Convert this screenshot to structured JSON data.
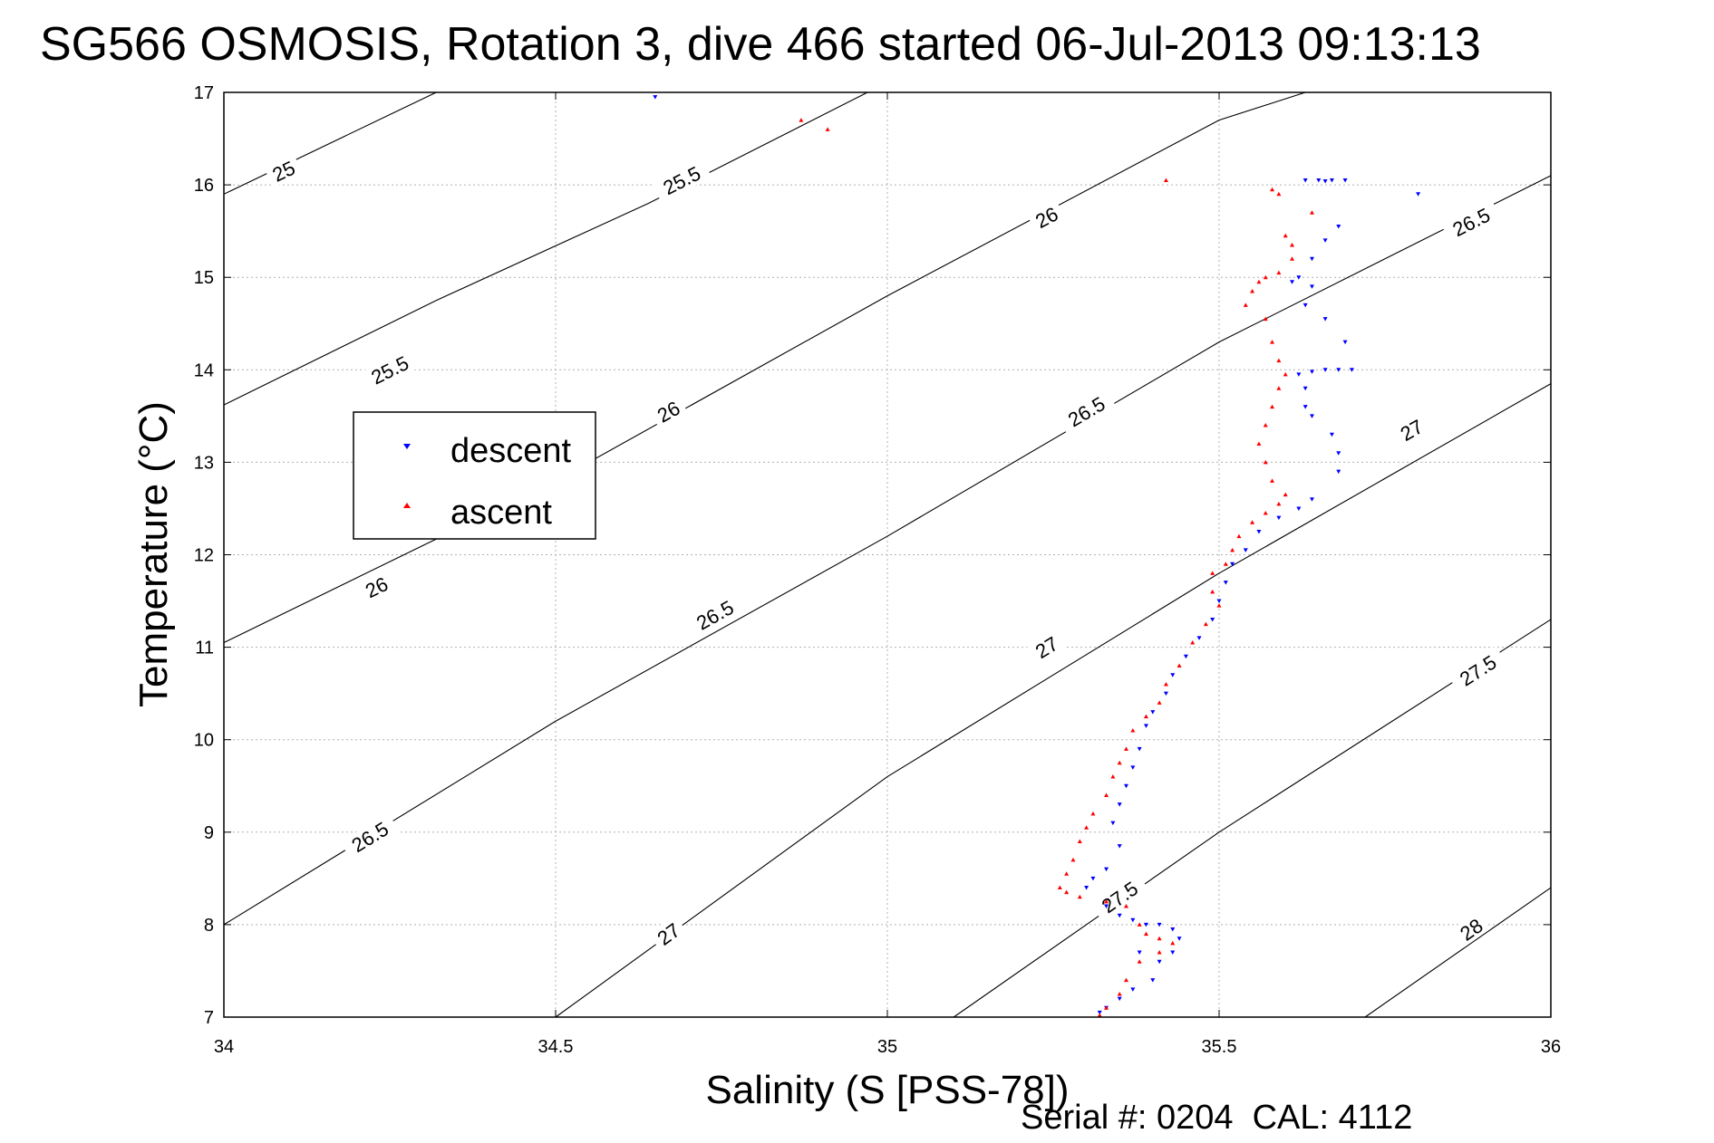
{
  "chart_data": {
    "type": "scatter",
    "title": "SG566 OSMOSIS, Rotation 3, dive 466 started 06-Jul-2013 09:13:13",
    "xlabel": "Salinity (S [PSS-78])",
    "ylabel": "Temperature (°C)",
    "footer": "Serial #: 0204  CAL: 4112",
    "xlim": [
      34,
      36
    ],
    "ylim": [
      7,
      17
    ],
    "xticks": [
      "34",
      "34.5",
      "35",
      "35.5",
      "36"
    ],
    "yticks": [
      "7",
      "8",
      "9",
      "10",
      "11",
      "12",
      "13",
      "14",
      "15",
      "16",
      "17"
    ],
    "grid": true,
    "legend": "left-middle",
    "colors": {
      "descent": "#0000ff",
      "ascent": "#ff0000",
      "contour": "#000000",
      "grid": "#b0b0b0"
    },
    "series": [
      {
        "name": "descent",
        "marker": "triangle-down",
        "points": [
          [
            34.65,
            16.95
          ],
          [
            35.63,
            16.05
          ],
          [
            35.65,
            16.05
          ],
          [
            35.66,
            16.04
          ],
          [
            35.67,
            16.05
          ],
          [
            35.69,
            16.05
          ],
          [
            35.8,
            15.9
          ],
          [
            35.68,
            15.55
          ],
          [
            35.66,
            15.4
          ],
          [
            35.64,
            15.2
          ],
          [
            35.62,
            15.0
          ],
          [
            35.61,
            14.95
          ],
          [
            35.64,
            14.9
          ],
          [
            35.63,
            14.7
          ],
          [
            35.66,
            14.55
          ],
          [
            35.69,
            14.3
          ],
          [
            35.62,
            13.95
          ],
          [
            35.64,
            13.98
          ],
          [
            35.66,
            14.0
          ],
          [
            35.68,
            14.0
          ],
          [
            35.7,
            14.0
          ],
          [
            35.63,
            13.8
          ],
          [
            35.63,
            13.6
          ],
          [
            35.64,
            13.5
          ],
          [
            35.67,
            13.3
          ],
          [
            35.68,
            13.1
          ],
          [
            35.68,
            12.9
          ],
          [
            35.64,
            12.6
          ],
          [
            35.62,
            12.5
          ],
          [
            35.59,
            12.4
          ],
          [
            35.56,
            12.25
          ],
          [
            35.54,
            12.05
          ],
          [
            35.52,
            11.9
          ],
          [
            35.51,
            11.7
          ],
          [
            35.5,
            11.5
          ],
          [
            35.49,
            11.3
          ],
          [
            35.47,
            11.1
          ],
          [
            35.45,
            10.9
          ],
          [
            35.43,
            10.7
          ],
          [
            35.42,
            10.5
          ],
          [
            35.4,
            10.3
          ],
          [
            35.39,
            10.15
          ],
          [
            35.38,
            9.9
          ],
          [
            35.37,
            9.7
          ],
          [
            35.36,
            9.5
          ],
          [
            35.35,
            9.3
          ],
          [
            35.34,
            9.1
          ],
          [
            35.35,
            8.85
          ],
          [
            35.33,
            8.6
          ],
          [
            35.31,
            8.5
          ],
          [
            35.3,
            8.4
          ],
          [
            35.33,
            8.2
          ],
          [
            35.35,
            8.1
          ],
          [
            35.37,
            8.05
          ],
          [
            35.39,
            8.0
          ],
          [
            35.41,
            8.0
          ],
          [
            35.43,
            7.95
          ],
          [
            35.44,
            7.85
          ],
          [
            35.43,
            7.7
          ],
          [
            35.41,
            7.6
          ],
          [
            35.38,
            7.7
          ],
          [
            35.4,
            7.4
          ],
          [
            35.37,
            7.3
          ],
          [
            35.35,
            7.2
          ],
          [
            35.33,
            7.1
          ],
          [
            35.32,
            7.05
          ]
        ]
      },
      {
        "name": "ascent",
        "marker": "triangle-up",
        "points": [
          [
            34.87,
            16.7
          ],
          [
            34.91,
            16.6
          ],
          [
            35.42,
            16.05
          ],
          [
            35.58,
            15.95
          ],
          [
            35.59,
            15.9
          ],
          [
            35.64,
            15.7
          ],
          [
            35.6,
            15.45
          ],
          [
            35.61,
            15.35
          ],
          [
            35.61,
            15.2
          ],
          [
            35.59,
            15.05
          ],
          [
            35.57,
            15.0
          ],
          [
            35.56,
            14.95
          ],
          [
            35.55,
            14.85
          ],
          [
            35.54,
            14.7
          ],
          [
            35.57,
            14.55
          ],
          [
            35.58,
            14.3
          ],
          [
            35.59,
            14.1
          ],
          [
            35.6,
            13.95
          ],
          [
            35.59,
            13.8
          ],
          [
            35.58,
            13.6
          ],
          [
            35.57,
            13.4
          ],
          [
            35.56,
            13.2
          ],
          [
            35.57,
            13.0
          ],
          [
            35.58,
            12.8
          ],
          [
            35.6,
            12.65
          ],
          [
            35.59,
            12.55
          ],
          [
            35.57,
            12.45
          ],
          [
            35.55,
            12.35
          ],
          [
            35.53,
            12.2
          ],
          [
            35.52,
            12.05
          ],
          [
            35.51,
            11.9
          ],
          [
            35.49,
            11.8
          ],
          [
            35.49,
            11.6
          ],
          [
            35.5,
            11.45
          ],
          [
            35.48,
            11.25
          ],
          [
            35.46,
            11.05
          ],
          [
            35.44,
            10.8
          ],
          [
            35.42,
            10.6
          ],
          [
            35.41,
            10.4
          ],
          [
            35.39,
            10.25
          ],
          [
            35.37,
            10.1
          ],
          [
            35.36,
            9.9
          ],
          [
            35.35,
            9.75
          ],
          [
            35.34,
            9.6
          ],
          [
            35.33,
            9.4
          ],
          [
            35.31,
            9.2
          ],
          [
            35.3,
            9.05
          ],
          [
            35.29,
            8.9
          ],
          [
            35.28,
            8.7
          ],
          [
            35.27,
            8.55
          ],
          [
            35.26,
            8.4
          ],
          [
            35.27,
            8.35
          ],
          [
            35.29,
            8.3
          ],
          [
            35.33,
            8.25
          ],
          [
            35.36,
            8.2
          ],
          [
            35.38,
            8.0
          ],
          [
            35.39,
            7.9
          ],
          [
            35.41,
            7.85
          ],
          [
            35.43,
            7.8
          ],
          [
            35.41,
            7.7
          ],
          [
            35.38,
            7.6
          ],
          [
            35.36,
            7.4
          ],
          [
            35.35,
            7.25
          ],
          [
            35.33,
            7.1
          ],
          [
            35.32,
            7.02
          ]
        ]
      }
    ],
    "density_contours": [
      {
        "label": "25",
        "points": [
          [
            34.0,
            15.9
          ],
          [
            34.32,
            17.0
          ]
        ],
        "labels_at": [
          [
            34.09,
            16.15
          ]
        ]
      },
      {
        "label": "25.5",
        "points": [
          [
            34.0,
            13.62
          ],
          [
            34.32,
            14.75
          ],
          [
            34.64,
            15.8
          ],
          [
            34.97,
            17.0
          ]
        ],
        "labels_at": [
          [
            34.25,
            14.0
          ],
          [
            34.69,
            16.05
          ]
        ]
      },
      {
        "label": "26",
        "points": [
          [
            34.0,
            11.05
          ],
          [
            34.5,
            12.8
          ],
          [
            35.0,
            14.8
          ],
          [
            35.5,
            16.7
          ],
          [
            35.63,
            17.0
          ]
        ],
        "labels_at": [
          [
            34.23,
            11.65
          ],
          [
            34.67,
            13.55
          ],
          [
            35.24,
            15.65
          ]
        ]
      },
      {
        "label": "26.5",
        "points": [
          [
            34.0,
            8.0
          ],
          [
            34.5,
            10.2
          ],
          [
            35.0,
            12.2
          ],
          [
            35.5,
            14.3
          ],
          [
            36.0,
            16.1
          ]
        ],
        "labels_at": [
          [
            34.22,
            8.95
          ],
          [
            34.74,
            11.35
          ],
          [
            35.3,
            13.55
          ],
          [
            35.88,
            15.6
          ]
        ]
      },
      {
        "label": "27",
        "points": [
          [
            34.5,
            7.0
          ],
          [
            35.0,
            9.6
          ],
          [
            35.5,
            11.8
          ],
          [
            36.0,
            13.85
          ]
        ],
        "labels_at": [
          [
            34.67,
            7.9
          ],
          [
            35.24,
            11.0
          ],
          [
            35.79,
            13.35
          ]
        ]
      },
      {
        "label": "27.5",
        "points": [
          [
            35.1,
            7.0
          ],
          [
            35.5,
            9.0
          ],
          [
            36.0,
            11.3
          ]
        ],
        "labels_at": [
          [
            35.35,
            8.3
          ],
          [
            35.89,
            10.75
          ]
        ]
      },
      {
        "label": "28",
        "points": [
          [
            35.72,
            7.0
          ],
          [
            36.0,
            8.4
          ]
        ],
        "labels_at": [
          [
            35.88,
            7.95
          ]
        ]
      }
    ]
  }
}
